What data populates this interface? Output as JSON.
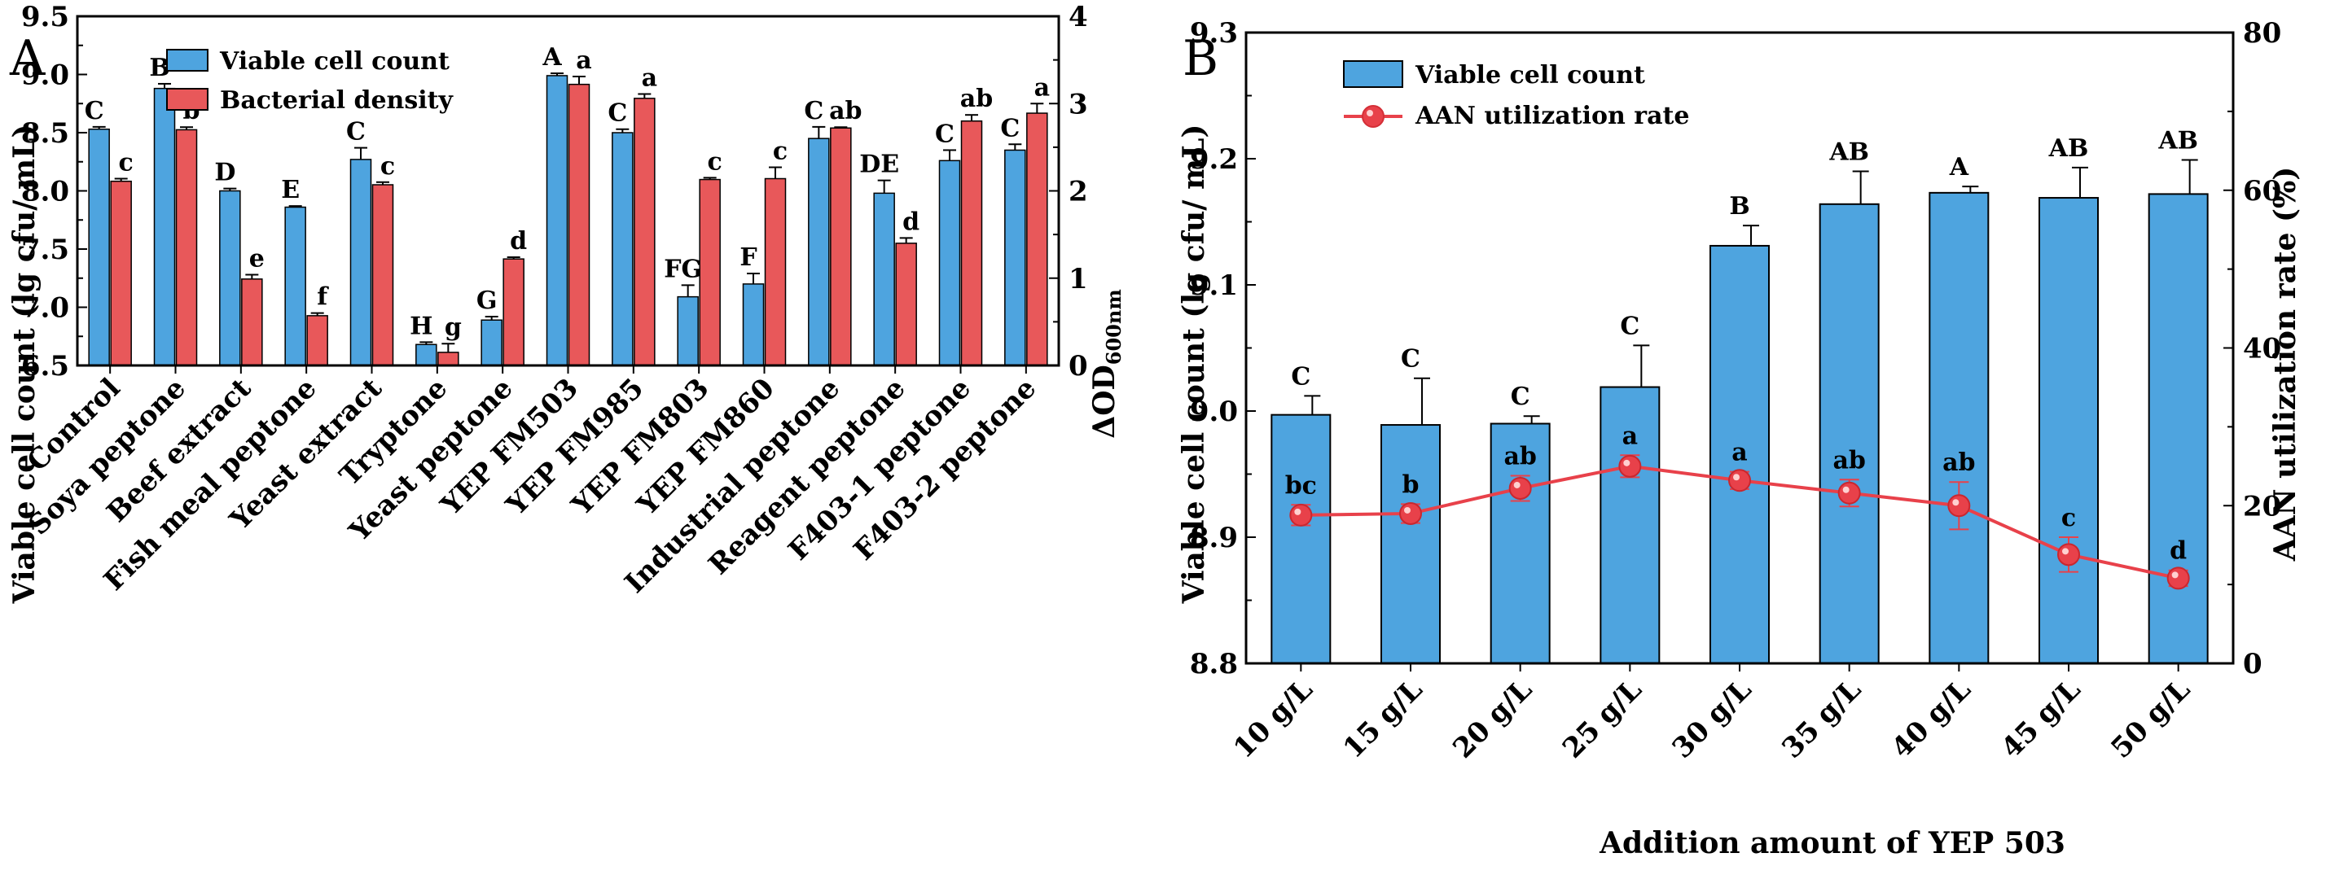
{
  "chart_data": [
    {
      "panel": "A",
      "type": "bar",
      "categories": [
        "Control",
        "Soya peptone",
        "Beef extract",
        "Fish meal peptone",
        "Yeast extract",
        "Tryptone",
        "Yeast peptone",
        "YEP FM503",
        "YEP FM985",
        "YEP FM803",
        "YEP FM860",
        "Industrial peptone",
        "Reagent peptone",
        "F403-1 peptone",
        "F403-2 peptone"
      ],
      "ylabel": "Viable cell count (lg cfu/ mL)",
      "y2label_main": "ΔOD",
      "y2label_sub": "600nm",
      "ylim": [
        6.5,
        9.5
      ],
      "yticks": [
        "6.5",
        "7.0",
        "7.5",
        "8.0",
        "8.5",
        "9.0",
        "9.5"
      ],
      "y2lim": [
        0,
        4
      ],
      "y2ticks": [
        "0",
        "1",
        "2",
        "3",
        "4"
      ],
      "series": [
        {
          "name": "Viable cell count",
          "axis": "left",
          "color": "#4ea4df",
          "values": [
            8.53,
            8.88,
            8.0,
            7.86,
            8.27,
            6.68,
            6.89,
            8.99,
            8.5,
            7.09,
            7.2,
            8.45,
            7.98,
            8.26,
            8.35
          ],
          "errors": [
            0.02,
            0.04,
            0.02,
            0.01,
            0.1,
            0.02,
            0.03,
            0.02,
            0.03,
            0.1,
            0.09,
            0.1,
            0.11,
            0.09,
            0.05
          ],
          "letters": [
            "C",
            "B",
            "D",
            "E",
            "C",
            "H",
            "G",
            "A",
            "C",
            "FG",
            "F",
            "C",
            "DE",
            "C",
            "C"
          ]
        },
        {
          "name": "Bacterial density",
          "axis": "right",
          "color": "#e8585a",
          "values": [
            2.11,
            2.7,
            0.99,
            0.57,
            2.07,
            0.15,
            1.22,
            3.22,
            3.06,
            2.13,
            2.14,
            2.72,
            1.4,
            2.8,
            2.89
          ],
          "errors": [
            0.03,
            0.03,
            0.05,
            0.03,
            0.03,
            0.1,
            0.02,
            0.09,
            0.05,
            0.02,
            0.13,
            0.01,
            0.06,
            0.07,
            0.11
          ],
          "letters": [
            "c",
            "b",
            "e",
            "f",
            "c",
            "g",
            "d",
            "a",
            "a",
            "c",
            "c",
            "ab",
            "d",
            "ab",
            "a"
          ]
        }
      ]
    },
    {
      "panel": "B",
      "type": "bar+line",
      "categories": [
        "10 g/L",
        "15 g/L",
        "20 g/L",
        "25 g/L",
        "30 g/L",
        "35 g/L",
        "40 g/L",
        "45 g/L",
        "50 g/L"
      ],
      "xlabel": "Addition amount of YEP 503",
      "ylabel": "Viable cell count (lg cfu/ mL)",
      "y2label": "AAN utilization rate (%)",
      "ylim": [
        8.8,
        9.3
      ],
      "yticks": [
        "8.8",
        "8.9",
        "9.0",
        "9.1",
        "9.2",
        "9.3"
      ],
      "y2lim": [
        0,
        80
      ],
      "y2ticks": [
        "0",
        "20",
        "40",
        "60",
        "80"
      ],
      "series": [
        {
          "name": "Viable cell count",
          "kind": "bar",
          "axis": "left",
          "color": "#4ea4df",
          "values": [
            8.997,
            8.989,
            8.99,
            9.019,
            9.131,
            9.164,
            9.173,
            9.169,
            9.172
          ],
          "errors": [
            0.015,
            0.037,
            0.006,
            0.033,
            0.016,
            0.026,
            0.005,
            0.024,
            0.027
          ],
          "letters": [
            "C",
            "C",
            "C",
            "C",
            "B",
            "AB",
            "A",
            "AB",
            "AB"
          ]
        },
        {
          "name": "AAN utilization rate",
          "kind": "line",
          "axis": "right",
          "color": "#e8414a",
          "values": [
            18.8,
            19.0,
            22.2,
            25.0,
            23.2,
            21.6,
            20.0,
            13.8,
            10.8
          ],
          "errors": [
            1.3,
            1.2,
            1.6,
            1.4,
            1.1,
            1.7,
            3.0,
            2.2,
            1.0
          ],
          "letters": [
            "bc",
            "b",
            "ab",
            "a",
            "a",
            "ab",
            "ab",
            "c",
            "d"
          ]
        }
      ]
    }
  ]
}
